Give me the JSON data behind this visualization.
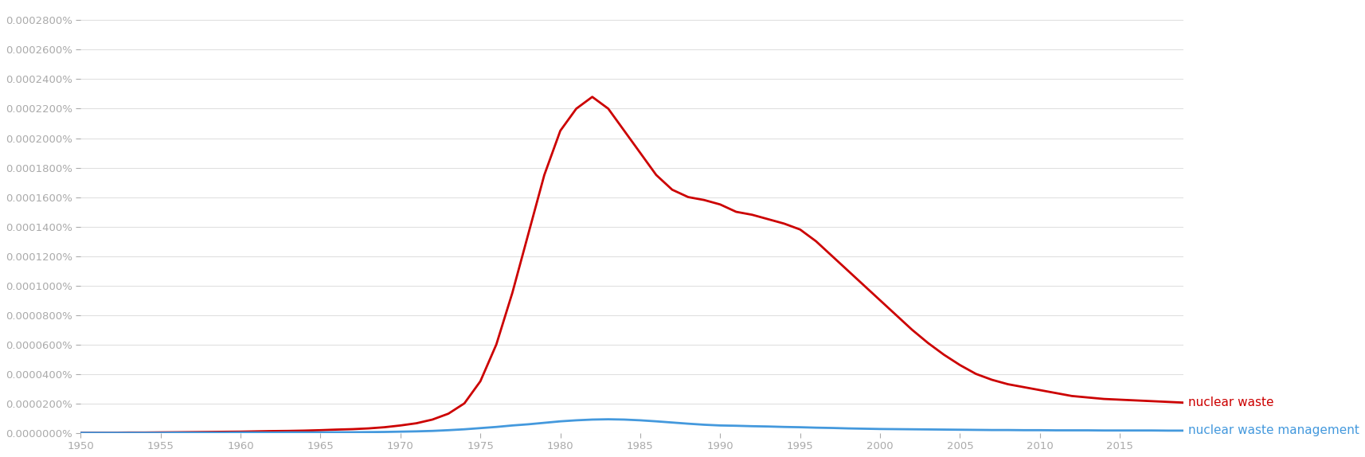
{
  "title": "",
  "background_color": "#ffffff",
  "grid_color": "#e0e0e0",
  "tick_color": "#aaaaaa",
  "label_color": "#aaaaaa",
  "series": [
    {
      "label": "nuclear waste",
      "color": "#cc0000",
      "points": [
        [
          1950,
          1e-07
        ],
        [
          1951,
          1e-07
        ],
        [
          1952,
          1e-07
        ],
        [
          1953,
          2e-07
        ],
        [
          1954,
          2e-07
        ],
        [
          1955,
          3e-07
        ],
        [
          1956,
          4e-07
        ],
        [
          1957,
          5e-07
        ],
        [
          1958,
          6e-07
        ],
        [
          1959,
          7e-07
        ],
        [
          1960,
          8e-07
        ],
        [
          1961,
          1e-06
        ],
        [
          1962,
          1.2e-06
        ],
        [
          1963,
          1.3e-06
        ],
        [
          1964,
          1.5e-06
        ],
        [
          1965,
          1.8e-06
        ],
        [
          1966,
          2.2e-06
        ],
        [
          1967,
          2.5e-06
        ],
        [
          1968,
          3e-06
        ],
        [
          1969,
          3.8e-06
        ],
        [
          1970,
          5e-06
        ],
        [
          1971,
          6.5e-06
        ],
        [
          1972,
          9e-06
        ],
        [
          1973,
          1.3e-05
        ],
        [
          1974,
          2e-05
        ],
        [
          1975,
          3.5e-05
        ],
        [
          1976,
          6e-05
        ],
        [
          1977,
          9.5e-05
        ],
        [
          1978,
          0.000135
        ],
        [
          1979,
          0.000175
        ],
        [
          1980,
          0.000205
        ],
        [
          1981,
          0.00022
        ],
        [
          1982,
          0.000228
        ],
        [
          1983,
          0.00022
        ],
        [
          1984,
          0.000205
        ],
        [
          1985,
          0.00019
        ],
        [
          1986,
          0.000175
        ],
        [
          1987,
          0.000165
        ],
        [
          1988,
          0.00016
        ],
        [
          1989,
          0.000158
        ],
        [
          1990,
          0.000155
        ],
        [
          1991,
          0.00015
        ],
        [
          1992,
          0.000148
        ],
        [
          1993,
          0.000145
        ],
        [
          1994,
          0.000142
        ],
        [
          1995,
          0.000138
        ],
        [
          1996,
          0.00013
        ],
        [
          1997,
          0.00012
        ],
        [
          1998,
          0.00011
        ],
        [
          1999,
          0.0001
        ],
        [
          2000,
          9e-05
        ],
        [
          2001,
          8e-05
        ],
        [
          2002,
          7e-05
        ],
        [
          2003,
          6.1e-05
        ],
        [
          2004,
          5.3e-05
        ],
        [
          2005,
          4.6e-05
        ],
        [
          2006,
          4e-05
        ],
        [
          2007,
          3.6e-05
        ],
        [
          2008,
          3.3e-05
        ],
        [
          2009,
          3.1e-05
        ],
        [
          2010,
          2.9e-05
        ],
        [
          2011,
          2.7e-05
        ],
        [
          2012,
          2.5e-05
        ],
        [
          2013,
          2.4e-05
        ],
        [
          2014,
          2.3e-05
        ],
        [
          2015,
          2.25e-05
        ],
        [
          2016,
          2.2e-05
        ],
        [
          2017,
          2.15e-05
        ],
        [
          2018,
          2.1e-05
        ],
        [
          2019,
          2.05e-05
        ]
      ]
    },
    {
      "label": "nuclear waste management",
      "color": "#4499dd",
      "points": [
        [
          1950,
          0.0
        ],
        [
          1951,
          0.0
        ],
        [
          1952,
          0.0
        ],
        [
          1953,
          0.0
        ],
        [
          1954,
          0.0
        ],
        [
          1955,
          0.0
        ],
        [
          1956,
          1e-07
        ],
        [
          1957,
          1e-07
        ],
        [
          1958,
          1e-07
        ],
        [
          1959,
          1e-07
        ],
        [
          1960,
          2e-07
        ],
        [
          1961,
          2e-07
        ],
        [
          1962,
          2e-07
        ],
        [
          1963,
          3e-07
        ],
        [
          1964,
          3e-07
        ],
        [
          1965,
          3e-07
        ],
        [
          1966,
          4e-07
        ],
        [
          1967,
          4e-07
        ],
        [
          1968,
          5e-07
        ],
        [
          1969,
          6e-07
        ],
        [
          1970,
          8e-07
        ],
        [
          1971,
          1e-06
        ],
        [
          1972,
          1.3e-06
        ],
        [
          1973,
          1.8e-06
        ],
        [
          1974,
          2.4e-06
        ],
        [
          1975,
          3.2e-06
        ],
        [
          1976,
          4e-06
        ],
        [
          1977,
          5e-06
        ],
        [
          1978,
          5.8e-06
        ],
        [
          1979,
          6.8e-06
        ],
        [
          1980,
          7.8e-06
        ],
        [
          1981,
          8.5e-06
        ],
        [
          1982,
          9e-06
        ],
        [
          1983,
          9.2e-06
        ],
        [
          1984,
          9e-06
        ],
        [
          1985,
          8.5e-06
        ],
        [
          1986,
          7.8e-06
        ],
        [
          1987,
          7e-06
        ],
        [
          1988,
          6.2e-06
        ],
        [
          1989,
          5.5e-06
        ],
        [
          1990,
          5e-06
        ],
        [
          1991,
          4.8e-06
        ],
        [
          1992,
          4.5e-06
        ],
        [
          1993,
          4.3e-06
        ],
        [
          1994,
          4e-06
        ],
        [
          1995,
          3.8e-06
        ],
        [
          1996,
          3.5e-06
        ],
        [
          1997,
          3.3e-06
        ],
        [
          1998,
          3e-06
        ],
        [
          1999,
          2.8e-06
        ],
        [
          2000,
          2.6e-06
        ],
        [
          2001,
          2.5e-06
        ],
        [
          2002,
          2.4e-06
        ],
        [
          2003,
          2.3e-06
        ],
        [
          2004,
          2.2e-06
        ],
        [
          2005,
          2.1e-06
        ],
        [
          2006,
          2e-06
        ],
        [
          2007,
          1.9e-06
        ],
        [
          2008,
          1.9e-06
        ],
        [
          2009,
          1.8e-06
        ],
        [
          2010,
          1.8e-06
        ],
        [
          2011,
          1.7e-06
        ],
        [
          2012,
          1.7e-06
        ],
        [
          2013,
          1.7e-06
        ],
        [
          2014,
          1.6e-06
        ],
        [
          2015,
          1.6e-06
        ],
        [
          2016,
          1.6e-06
        ],
        [
          2017,
          1.6e-06
        ],
        [
          2018,
          1.5e-06
        ],
        [
          2019,
          1.5e-06
        ]
      ]
    }
  ],
  "xlim": [
    1950,
    2019
  ],
  "ylim": [
    0,
    0.00029
  ],
  "ytick_values": [
    0.0,
    2e-05,
    4e-05,
    6e-05,
    8e-05,
    0.0001,
    0.00012,
    0.00014,
    0.00016,
    0.00018,
    0.0002,
    0.00022,
    0.00024,
    0.00026,
    0.00028
  ],
  "ytick_labels": [
    "0.0000000%",
    "0.0000200%",
    "0.0000400%",
    "0.0000600%",
    "0.0000800%",
    "0.0001000%",
    "0.0001200%",
    "0.0001400%",
    "0.0001600%",
    "0.0001800%",
    "0.0002000%",
    "0.0002200%",
    "0.0002400%",
    "0.0002600%",
    "0.0002800%"
  ],
  "xticks": [
    1950,
    1955,
    1960,
    1965,
    1970,
    1975,
    1980,
    1985,
    1990,
    1995,
    2000,
    2005,
    2010,
    2015
  ],
  "line_width": 2.0,
  "annotation_fontsize": 11,
  "tick_fontsize": 9.5
}
